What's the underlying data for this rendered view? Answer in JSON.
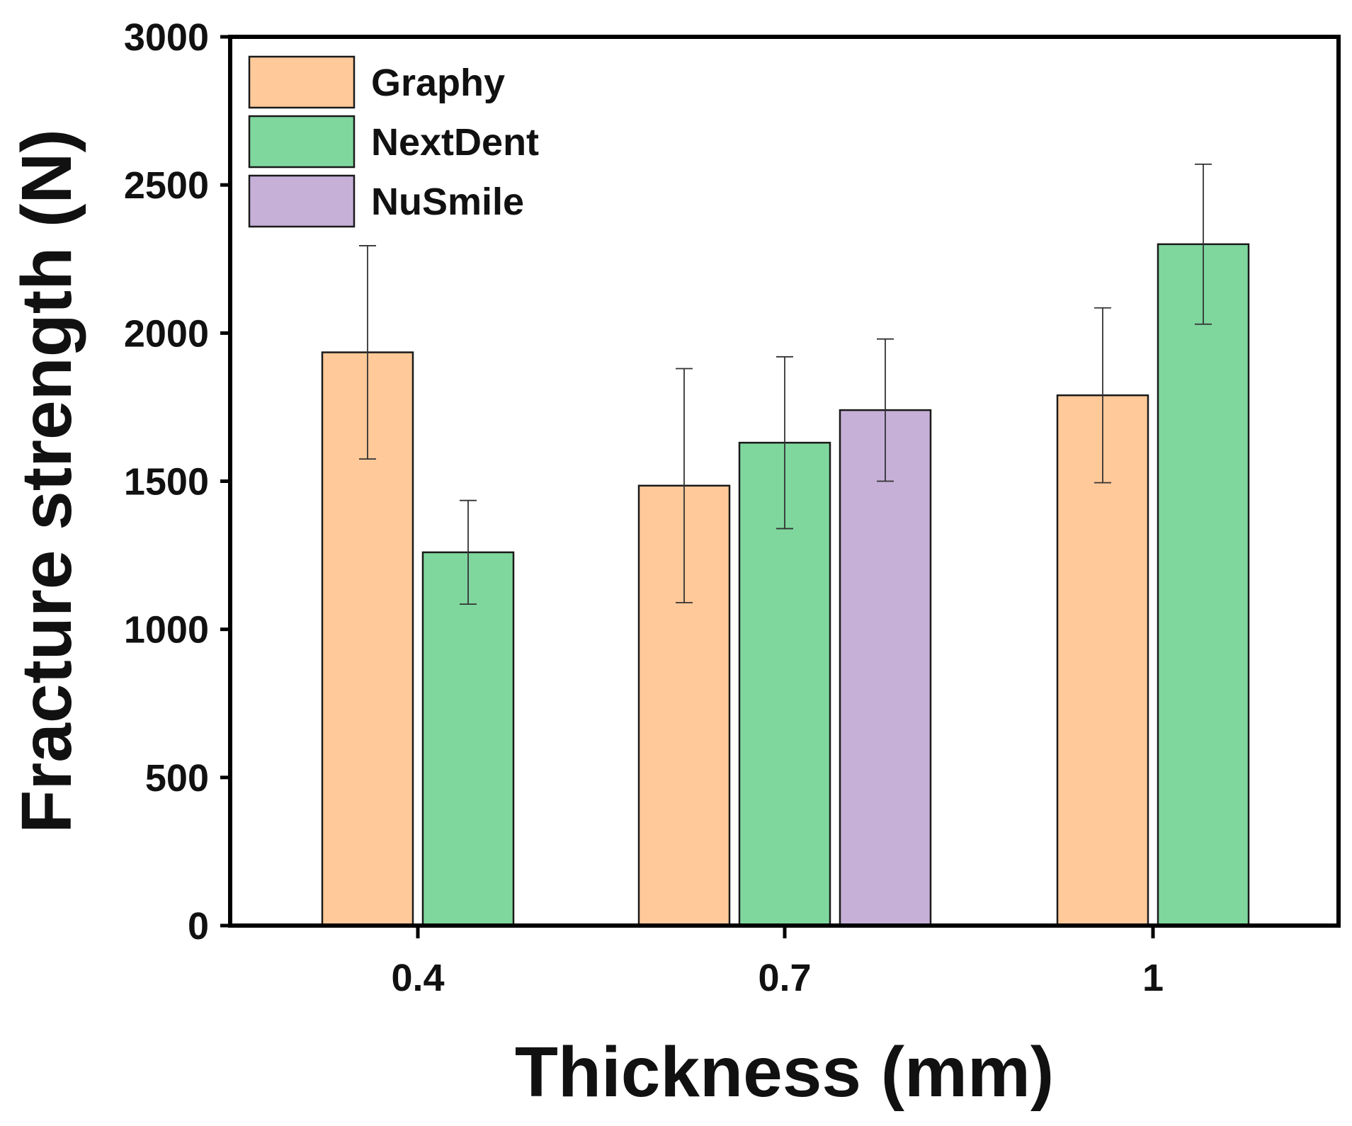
{
  "chart_data": {
    "type": "bar",
    "title": "",
    "xlabel": "Thickness (mm)",
    "ylabel": "Fracture strength (N)",
    "categories": [
      "0.4",
      "0.7",
      "1"
    ],
    "ylim": [
      0,
      3000
    ],
    "yticks": [
      "0",
      "500",
      "1000",
      "1500",
      "2000",
      "2500",
      "3000"
    ],
    "legend_position": "top-left",
    "grid": false,
    "series": [
      {
        "name": "Graphy",
        "color": "#FFC999",
        "values": [
          1935,
          1485,
          1790
        ],
        "errors": [
          360,
          395,
          295
        ]
      },
      {
        "name": "NextDent",
        "color": "#7FD79E",
        "values": [
          1260,
          1630,
          2300
        ],
        "errors": [
          175,
          290,
          270
        ]
      },
      {
        "name": "NuSmile",
        "color": "#C6B0D8",
        "values": [
          null,
          1740,
          null
        ],
        "errors": [
          null,
          240,
          null
        ]
      }
    ]
  }
}
